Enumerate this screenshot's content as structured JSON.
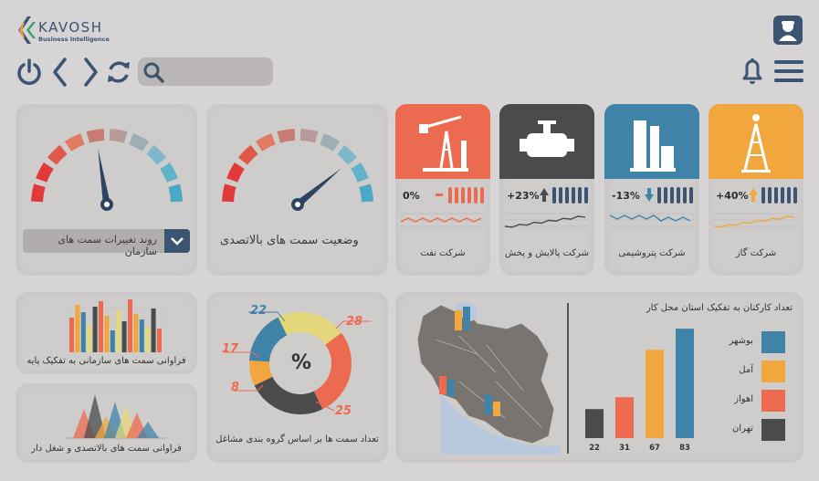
{
  "header": {
    "brand": "KAVOSH",
    "brand_sub": "Business Intelligence",
    "icons": [
      "power-icon",
      "back-icon",
      "forward-icon",
      "refresh-icon",
      "search-icon",
      "bell-icon",
      "menu-icon",
      "user-avatar-icon"
    ]
  },
  "search": {
    "placeholder": ""
  },
  "gauges": [
    {
      "title": "روند تغییرات سمت های سازمان",
      "needle": 0.45
    },
    {
      "title": "وضعیت سمت های بالاتصدی",
      "needle": 0.78
    }
  ],
  "dropdown_icon": "chevron-down-icon",
  "companies": [
    {
      "name": "شرکت نفت",
      "pct": "0%",
      "trend": "flat",
      "color": "#ec6a50",
      "icon": "oil-pump-icon"
    },
    {
      "name": "شرکت پالایش و پخش",
      "pct": "+23%",
      "trend": "up",
      "color": "#4a4b4d",
      "icon": "engine-icon"
    },
    {
      "name": "شرکت پتروشیمی",
      "pct": "-13%",
      "trend": "down",
      "color": "#3f83a8",
      "icon": "refinery-icon"
    },
    {
      "name": "شرکت گاز",
      "pct": "+40%",
      "trend": "up",
      "color": "#f2a73e",
      "icon": "gas-rig-icon"
    }
  ],
  "small_charts": [
    {
      "caption": "فراوانی سمت های سازمانی به تفکیک پایه"
    },
    {
      "caption": "فراوانی سمت های بالاتصدی و شغل دار"
    }
  ],
  "donut": {
    "center": "%",
    "caption": "تعداد سمت ها بر اساس گروه بندی مشاغل",
    "labels": [
      "22",
      "28",
      "17",
      "8",
      "25"
    ]
  },
  "map_card": {
    "title": "تعداد کارکنان به تفکیک استان محل کار",
    "legend": [
      "بوشهر",
      "آمل",
      "اهواز",
      "تهران"
    ]
  },
  "chart_data": {
    "type": "bar",
    "title": "تعداد کارکنان به تفکیک استان محل کار",
    "categories": [
      "تهران",
      "اهواز",
      "آمل",
      "بوشهر"
    ],
    "values": [
      22,
      31,
      67,
      83
    ],
    "colors": [
      "#4a4b4d",
      "#ec6a50",
      "#f2a73e",
      "#3f83a8"
    ],
    "value_labels": [
      "22",
      "31",
      "67",
      "83"
    ],
    "ylim": [
      0,
      90
    ]
  },
  "donut_chart": {
    "type": "pie",
    "values": [
      22,
      28,
      25,
      8,
      17
    ],
    "colors": [
      "#e5d77c",
      "#ec6a50",
      "#4a4b4d",
      "#f2a73e",
      "#3f83a8"
    ]
  }
}
